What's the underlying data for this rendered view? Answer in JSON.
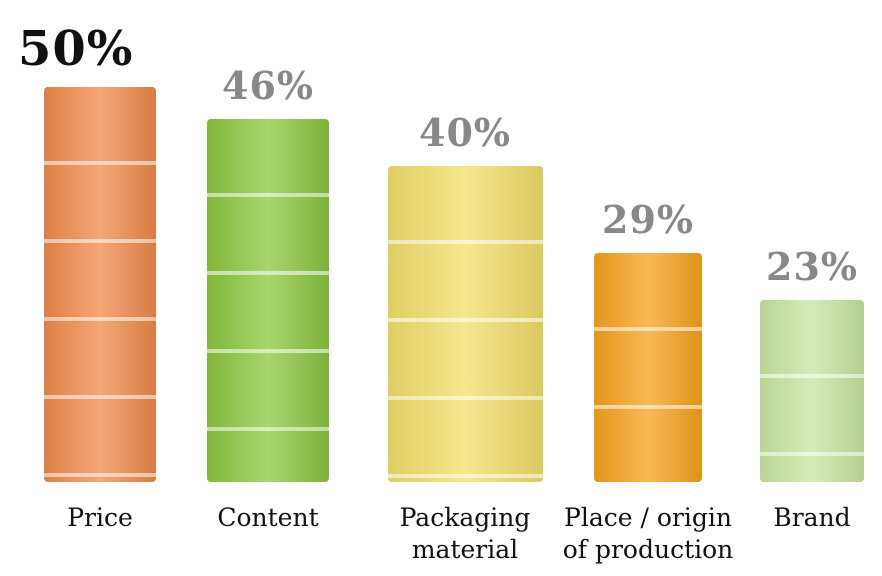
{
  "chart_data": {
    "type": "bar",
    "categories": [
      "Price",
      "Content",
      "Packaging material",
      "Place / origin of production",
      "Brand"
    ],
    "values": [
      50,
      46,
      40,
      29,
      23
    ],
    "value_labels": [
      "50%",
      "46%",
      "40%",
      "29%",
      "23%"
    ],
    "colors": [
      "#f08a4b",
      "#8cc63f",
      "#f3e06a",
      "#f7a21b",
      "#c9e6a0"
    ]
  }
}
